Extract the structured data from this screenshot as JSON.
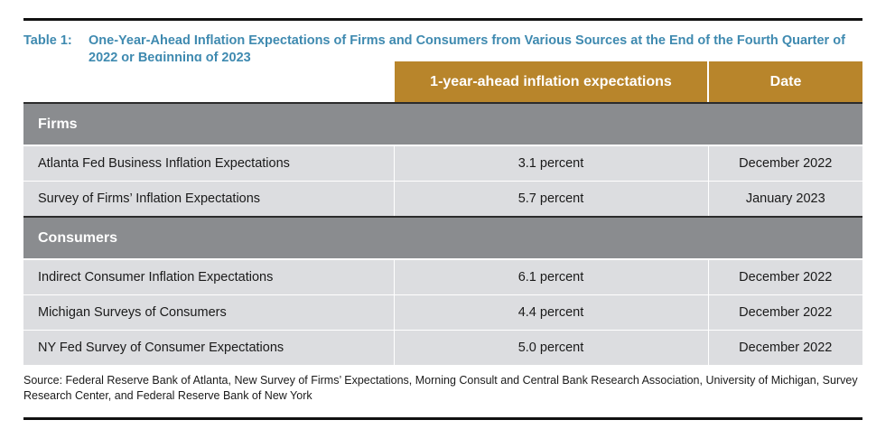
{
  "caption": {
    "number": "Table 1:",
    "title": "One-Year-Ahead Inflation Expectations of Firms and Consumers from Various Sources at the End of the Fourth Quarter of 2022 or Beginning of 2023"
  },
  "table": {
    "headers": [
      "",
      "1-year-ahead inflation expectations",
      "Date"
    ],
    "sections": [
      {
        "label": "Firms",
        "rows": [
          {
            "name": "Atlanta Fed Business Inflation Expectations",
            "value": "3.1 percent",
            "date": "December 2022"
          },
          {
            "name": "Survey of Firms’ Inflation Expectations",
            "value": "5.7 percent",
            "date": "January 2023"
          }
        ]
      },
      {
        "label": "Consumers",
        "rows": [
          {
            "name": "Indirect Consumer Inflation Expectations",
            "value": "6.1 percent",
            "date": "December 2022"
          },
          {
            "name": "Michigan Surveys of Consumers",
            "value": "4.4 percent",
            "date": "December 2022"
          },
          {
            "name": "NY Fed Survey of Consumer Expectations",
            "value": "5.0 percent",
            "date": "December 2022"
          }
        ]
      }
    ]
  },
  "source": "Source: Federal Reserve Bank of Atlanta, New Survey of Firms’ Expectations, Morning Consult and Central Bank Research Association, University of Michigan, Survey Research Center, and Federal Reserve Bank of New York",
  "colors": {
    "caption": "#3f8ab0",
    "header_bg": "#b8852b",
    "section_bg": "#8a8c8f",
    "row_bg": "#dcdde0"
  }
}
